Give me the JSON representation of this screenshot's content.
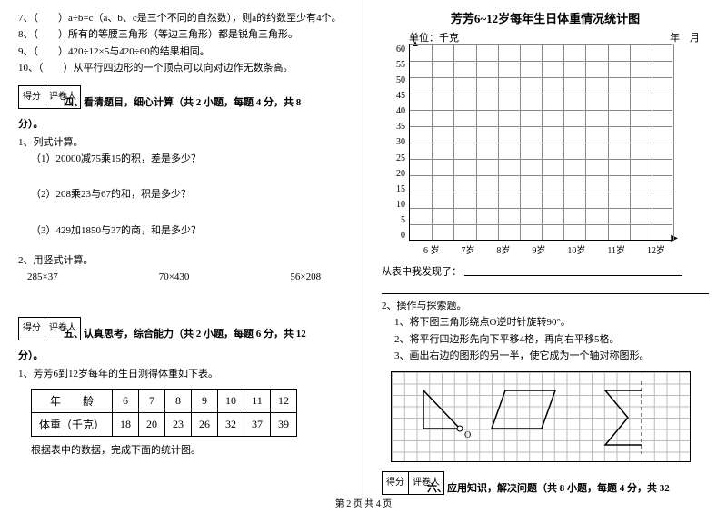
{
  "left": {
    "items": [
      "7、（　　）a÷b=c（a、b、c是三个不同的自然数），则a的约数至少有4个。",
      "8、（　　）所有的等腰三角形（等边三角形）都是锐角三角形。",
      "9、（　　）420÷12×5与420÷60的结果相同。",
      "10、（　　）从平行四边形的一个顶点可以向对边作无数条高。"
    ],
    "score": {
      "a": "得分",
      "b": "评卷人"
    },
    "sec4_title": "四、看清题目，细心计算（共 2 小题，每题 4 分，共 8",
    "sec4_after": "分）。",
    "q1": "1、列式计算。",
    "q1a": "（1）20000减75乘15的积，差是多少？",
    "q1b": "（2）208乘23与67的和，积是多少？",
    "q1c": "（3）429加1850与37的商，和是多少？",
    "q2": "2、用竖式计算。",
    "calc": [
      "285×37",
      "70×430",
      "56×208"
    ],
    "sec5_title": "五、认真思考，综合能力（共 2 小题，每题 6 分，共 12",
    "sec5_after": "分）。",
    "t_intro": "1、芳芳6到12岁每年的生日测得体重如下表。",
    "table": {
      "h": [
        "年　　龄",
        "6",
        "7",
        "8",
        "9",
        "10",
        "11",
        "12"
      ],
      "r": [
        "体重（千克）",
        "18",
        "20",
        "23",
        "26",
        "32",
        "37",
        "39"
      ]
    },
    "t_after": "根据表中的数据，完成下面的统计图。"
  },
  "right": {
    "chart": {
      "title": "芳芳6~12岁每年生日体重情况统计图",
      "unit": "单位：千克",
      "date": "年　月",
      "ylabels": [
        "60",
        "55",
        "50",
        "45",
        "40",
        "35",
        "30",
        "25",
        "20",
        "15",
        "10",
        "5",
        "0"
      ],
      "xlabels": [
        "6 岁",
        "7岁",
        "8岁",
        "9岁",
        "10岁",
        "11岁",
        "12岁"
      ],
      "gridColor": "#888888",
      "ymax": 60,
      "ystep": 5,
      "rows": 12,
      "cols": 12
    },
    "found": "从表中我发现了：",
    "op": {
      "title": "2、操作与探索题。",
      "l1": "1、将下图三角形绕点O逆时针旋转90°。",
      "l2": "2、将平行四边形先向下平移4格，再向右平移5格。",
      "l3": "3、画出右边的图形的另一半，使它成为一个轴对称图形。"
    },
    "sec6_title": "六、应用知识，解决问题（共 8 小题，每题 4 分，共 32"
  },
  "footer": "第 2 页 共 4 页"
}
